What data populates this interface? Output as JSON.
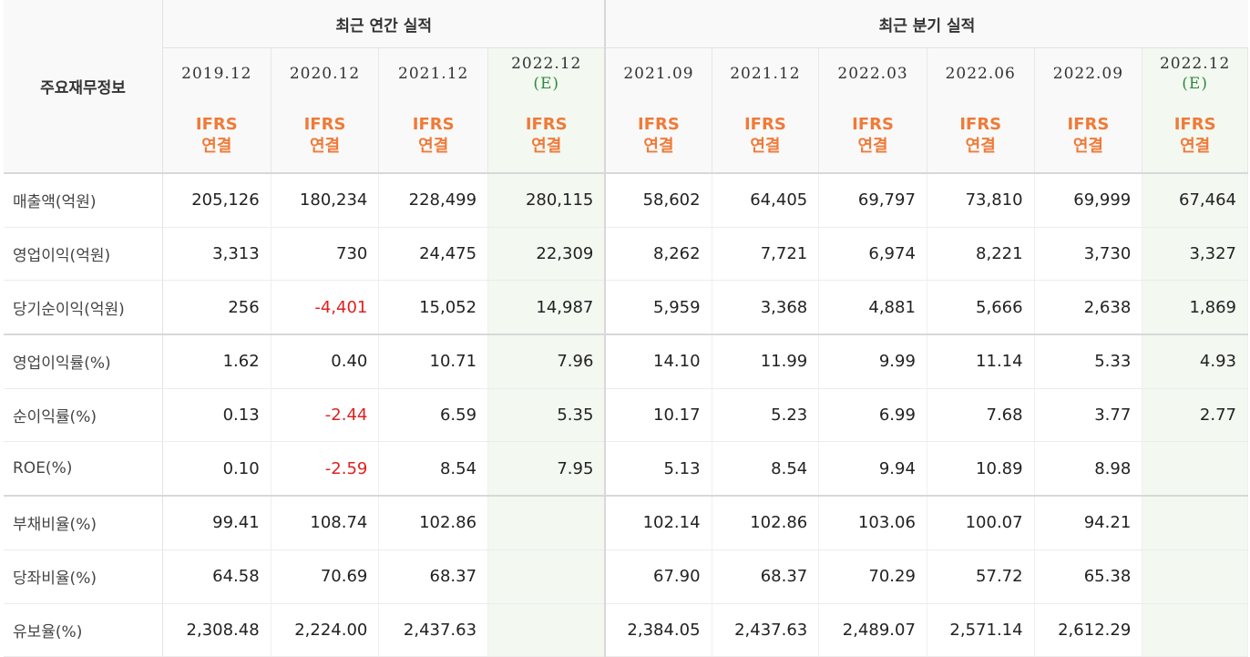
{
  "header": {
    "label": "주요재무정보",
    "annual_title": "최근 연간 실적",
    "quarterly_title": "최근 분기 실적"
  },
  "periods": [
    {
      "date": "2019.12",
      "est": ""
    },
    {
      "date": "2020.12",
      "est": ""
    },
    {
      "date": "2021.12",
      "est": ""
    },
    {
      "date": "2022.12",
      "est": "(E)"
    },
    {
      "date": "2021.09",
      "est": ""
    },
    {
      "date": "2021.12",
      "est": ""
    },
    {
      "date": "2022.03",
      "est": ""
    },
    {
      "date": "2022.06",
      "est": ""
    },
    {
      "date": "2022.09",
      "est": ""
    },
    {
      "date": "2022.12",
      "est": "(E)"
    }
  ],
  "ifrs": {
    "line1": "IFRS",
    "line2": "연결"
  },
  "rows": [
    {
      "label": "매출액(억원)",
      "values": [
        "205,126",
        "180,234",
        "228,499",
        "280,115",
        "58,602",
        "64,405",
        "69,797",
        "73,810",
        "69,999",
        "67,464"
      ]
    },
    {
      "label": "영업이익(억원)",
      "values": [
        "3,313",
        "730",
        "24,475",
        "22,309",
        "8,262",
        "7,721",
        "6,974",
        "8,221",
        "3,730",
        "3,327"
      ]
    },
    {
      "label": "당기순이익(억원)",
      "values": [
        "256",
        "-4,401",
        "15,052",
        "14,987",
        "5,959",
        "3,368",
        "4,881",
        "5,666",
        "2,638",
        "1,869"
      ]
    },
    {
      "label": "영업이익률(%)",
      "values": [
        "1.62",
        "0.40",
        "10.71",
        "7.96",
        "14.10",
        "11.99",
        "9.99",
        "11.14",
        "5.33",
        "4.93"
      ]
    },
    {
      "label": "순이익률(%)",
      "values": [
        "0.13",
        "-2.44",
        "6.59",
        "5.35",
        "10.17",
        "5.23",
        "6.99",
        "7.68",
        "3.77",
        "2.77"
      ]
    },
    {
      "label": "ROE(%)",
      "values": [
        "0.10",
        "-2.59",
        "8.54",
        "7.95",
        "5.13",
        "8.54",
        "9.94",
        "10.89",
        "8.98",
        ""
      ]
    },
    {
      "label": "부채비율(%)",
      "values": [
        "99.41",
        "108.74",
        "102.86",
        "",
        "102.14",
        "102.86",
        "103.06",
        "100.07",
        "94.21",
        ""
      ]
    },
    {
      "label": "당좌비율(%)",
      "values": [
        "64.58",
        "70.69",
        "68.37",
        "",
        "67.90",
        "68.37",
        "70.29",
        "57.72",
        "65.38",
        ""
      ]
    },
    {
      "label": "유보율(%)",
      "values": [
        "2,308.48",
        "2,224.00",
        "2,437.63",
        "",
        "2,384.05",
        "2,437.63",
        "2,489.07",
        "2,571.14",
        "2,612.29",
        ""
      ]
    }
  ],
  "colors": {
    "negative": "#e02020",
    "ifrs": "#f07a38",
    "estimate": "#2f8a3e",
    "estimate_bg": "#f3f8f1"
  }
}
